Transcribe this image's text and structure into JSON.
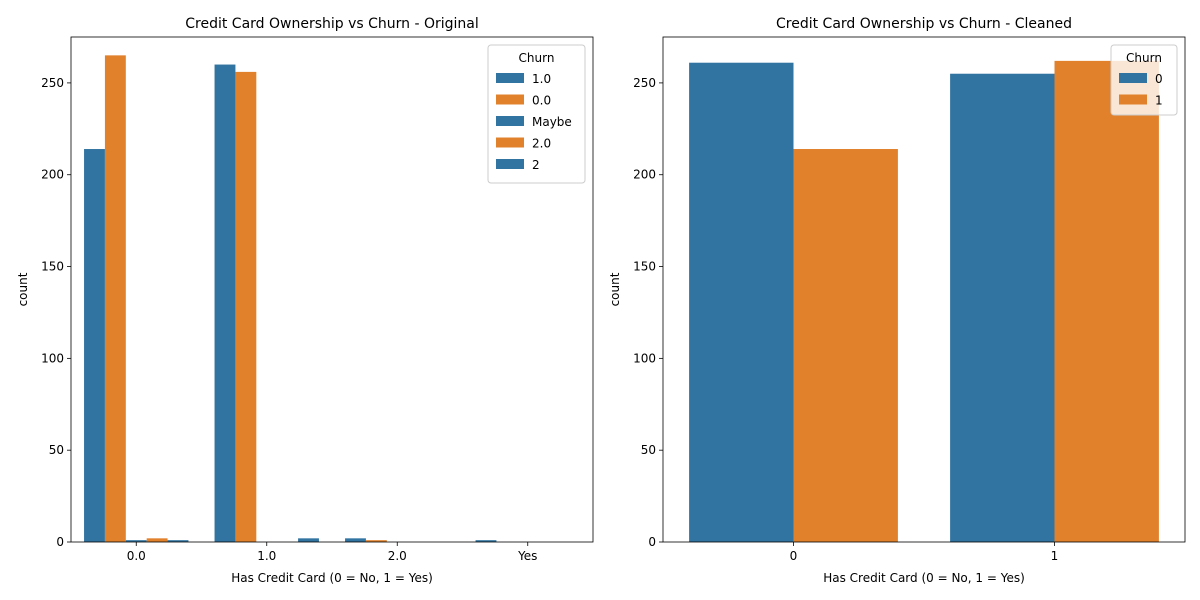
{
  "chart_data": [
    {
      "type": "bar",
      "title": "Credit Card Ownership vs Churn - Original",
      "xlabel": "Has Credit Card (0 = No, 1 = Yes)",
      "ylabel": "count",
      "categories": [
        "0.0",
        "1.0",
        "2.0",
        "Yes"
      ],
      "ylim": [
        0,
        275
      ],
      "yticks": [
        0,
        50,
        100,
        150,
        200,
        250
      ],
      "legend": {
        "title": "Churn",
        "placement": "top-right"
      },
      "series": [
        {
          "name": "1.0",
          "color": "#3274a1",
          "values": [
            214,
            260,
            2,
            1
          ]
        },
        {
          "name": "0.0",
          "color": "#e1812c",
          "values": [
            265,
            256,
            1,
            0
          ]
        },
        {
          "name": "Maybe",
          "color": "#3274a1",
          "values": [
            1,
            0,
            0,
            0
          ]
        },
        {
          "name": "2.0",
          "color": "#e1812c",
          "values": [
            2,
            0,
            0,
            0
          ]
        },
        {
          "name": "2",
          "color": "#3274a1",
          "values": [
            1,
            2,
            0,
            0
          ]
        }
      ],
      "grid": false
    },
    {
      "type": "bar",
      "title": "Credit Card Ownership vs Churn - Cleaned",
      "xlabel": "Has Credit Card (0 = No, 1 = Yes)",
      "ylabel": "count",
      "categories": [
        "0",
        "1"
      ],
      "ylim": [
        0,
        275
      ],
      "yticks": [
        0,
        50,
        100,
        150,
        200,
        250
      ],
      "legend": {
        "title": "Churn",
        "placement": "top-right"
      },
      "series": [
        {
          "name": "0",
          "color": "#3274a1",
          "values": [
            261,
            255
          ]
        },
        {
          "name": "1",
          "color": "#e1812c",
          "values": [
            214,
            262
          ]
        }
      ],
      "grid": false
    }
  ]
}
